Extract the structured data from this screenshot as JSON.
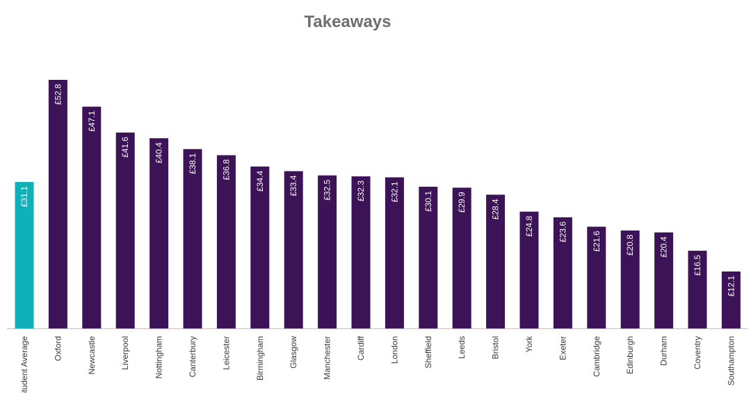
{
  "chart_data": {
    "type": "bar",
    "title": "Takeaways",
    "xlabel": "",
    "ylabel": "",
    "ylim": [
      0,
      60
    ],
    "grid": false,
    "value_prefix": "£",
    "categories": [
      "Student Average",
      "Oxford",
      "Newcastle",
      "Liverpool",
      "Nottingham",
      "Canterbury",
      "Leicester",
      "Birmingham",
      "Glasgow",
      "Manchester",
      "Cardiff",
      "London",
      "Sheffield",
      "Leeds",
      "Bristol",
      "York",
      "Exeter",
      "Cambridge",
      "Edinburgh",
      "Durham",
      "Coventry",
      "Southampton"
    ],
    "values": [
      31.1,
      52.8,
      47.1,
      41.6,
      40.4,
      38.1,
      36.8,
      34.4,
      33.4,
      32.5,
      32.3,
      32.1,
      30.1,
      29.9,
      28.4,
      24.8,
      23.6,
      21.6,
      20.8,
      20.4,
      16.5,
      12.1
    ],
    "data_labels": [
      "£31.1",
      "£52.8",
      "£47.1",
      "£41.6",
      "£40.4",
      "£38.1",
      "£36.8",
      "£34.4",
      "£33.4",
      "£32.5",
      "£32.3",
      "£32.1",
      "£30.1",
      "£29.9",
      "£28.4",
      "£24.8",
      "£23.6",
      "£21.6",
      "£20.8",
      "£20.4",
      "£16.5",
      "£12.1"
    ],
    "colors": {
      "average": "#10b0b8",
      "city": "#3c1357",
      "axis": "#bfbfbf",
      "title": "#6d6e71"
    }
  }
}
